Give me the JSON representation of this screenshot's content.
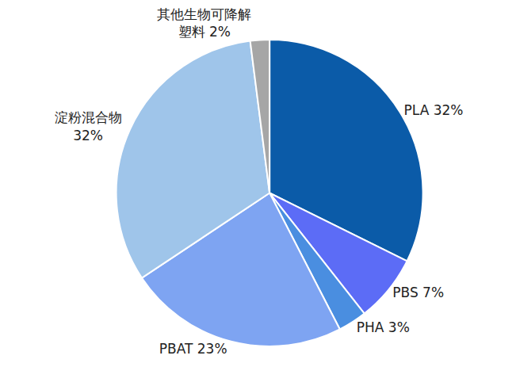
{
  "chart_data": {
    "type": "pie",
    "categories": [
      "PLA",
      "PBS",
      "PHA",
      "PBAT",
      "淀粉混合物",
      "其他生物可降解塑料"
    ],
    "values": [
      32,
      7,
      3,
      23,
      32,
      2
    ],
    "value_labels": [
      "PLA 32%",
      "PBS 7%",
      "PHA 3%",
      "PBAT 23%",
      "淀粉混合物\n32%",
      "其他生物可降解\n塑料 2%"
    ],
    "colors": [
      "#0b5ba8",
      "#5c6cf6",
      "#4a8ee0",
      "#7ea4f2",
      "#9fc5ea",
      "#a6a6a6"
    ],
    "data_labels": true
  }
}
